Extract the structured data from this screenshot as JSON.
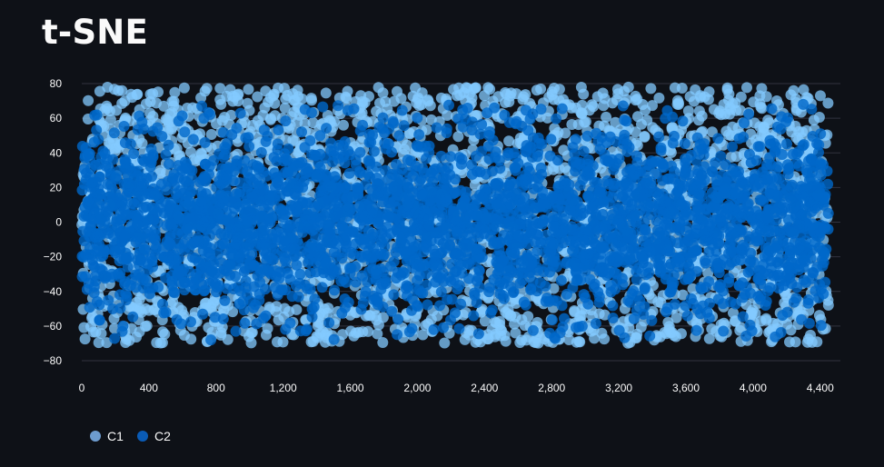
{
  "title": "t-SNE",
  "chart_data": {
    "type": "scatter",
    "title": "t-SNE",
    "xlabel": "",
    "ylabel": "",
    "xlim": [
      0,
      4450
    ],
    "ylim": [
      -80,
      80
    ],
    "x_ticks": [
      "0",
      "400",
      "800",
      "1,200",
      "1,600",
      "2,000",
      "2,400",
      "2,800",
      "3,200",
      "3,600",
      "4,000",
      "4,400"
    ],
    "x_tick_values": [
      0,
      400,
      800,
      1200,
      1600,
      2000,
      2400,
      2800,
      3200,
      3600,
      4000,
      4400
    ],
    "y_ticks": [
      "80",
      "60",
      "40",
      "20",
      "0",
      "−20",
      "−40",
      "−60",
      "−80"
    ],
    "y_tick_values": [
      80,
      60,
      40,
      20,
      0,
      -20,
      -40,
      -60,
      -80
    ],
    "grid": true,
    "legend_position": "bottom-left",
    "series": [
      {
        "name": "C1",
        "color": "#83c9ff",
        "legend_color": "#6d9ccf",
        "x_range": [
          0,
          4450
        ],
        "y_range": [
          -70,
          78
        ],
        "approx_points": 4450
      },
      {
        "name": "C2",
        "color": "#0068c9",
        "legend_color": "#0a5bb5",
        "x_range": [
          0,
          4450
        ],
        "y_range": [
          -68,
          68
        ],
        "approx_points": 4450
      }
    ]
  }
}
